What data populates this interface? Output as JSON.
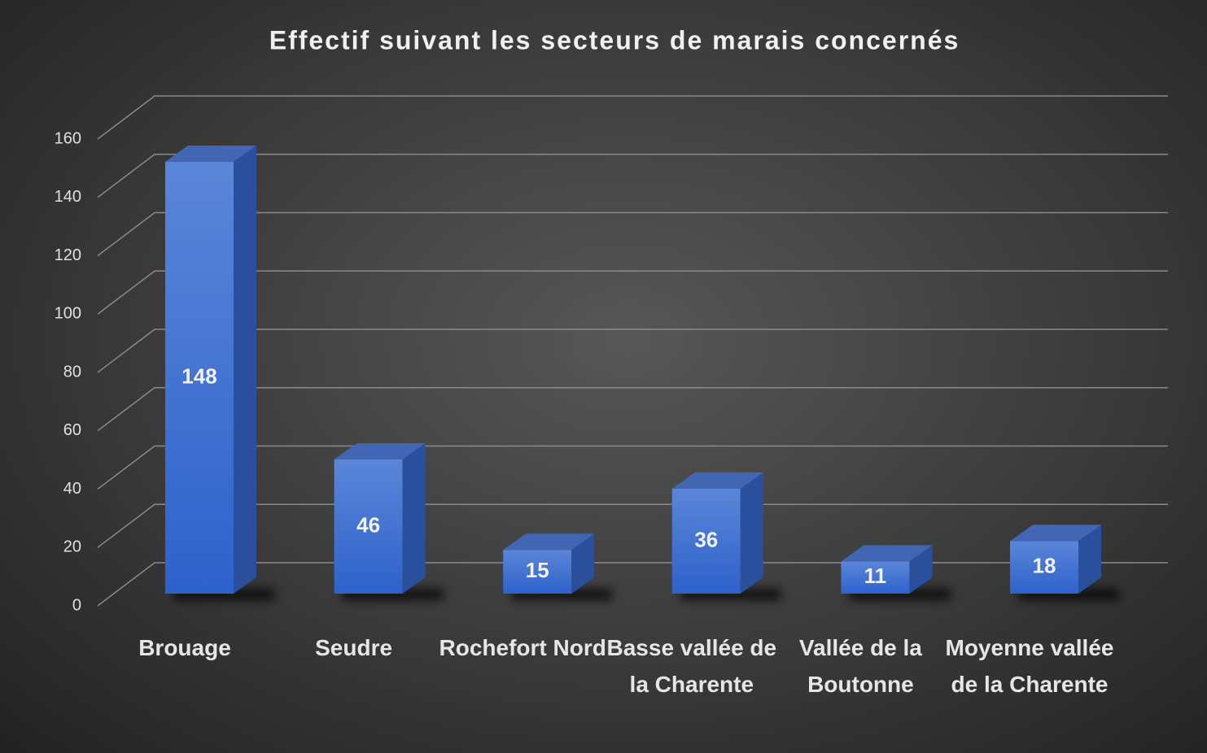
{
  "chart_data": {
    "type": "bar3d",
    "title": "Effectif suivant les secteurs de marais concernés",
    "categories": [
      "Brouage",
      "Seudre",
      "Rochefort Nord",
      "Basse vallée de la Charente",
      "Vallée de la Boutonne",
      "Moyenne vallée de la Charente"
    ],
    "values": [
      148,
      46,
      15,
      36,
      11,
      18
    ],
    "color": "#3a6ccf",
    "ylim": [
      0,
      160
    ],
    "yticks": [
      0,
      20,
      40,
      60,
      80,
      100,
      120,
      140,
      160
    ],
    "grid": true
  }
}
